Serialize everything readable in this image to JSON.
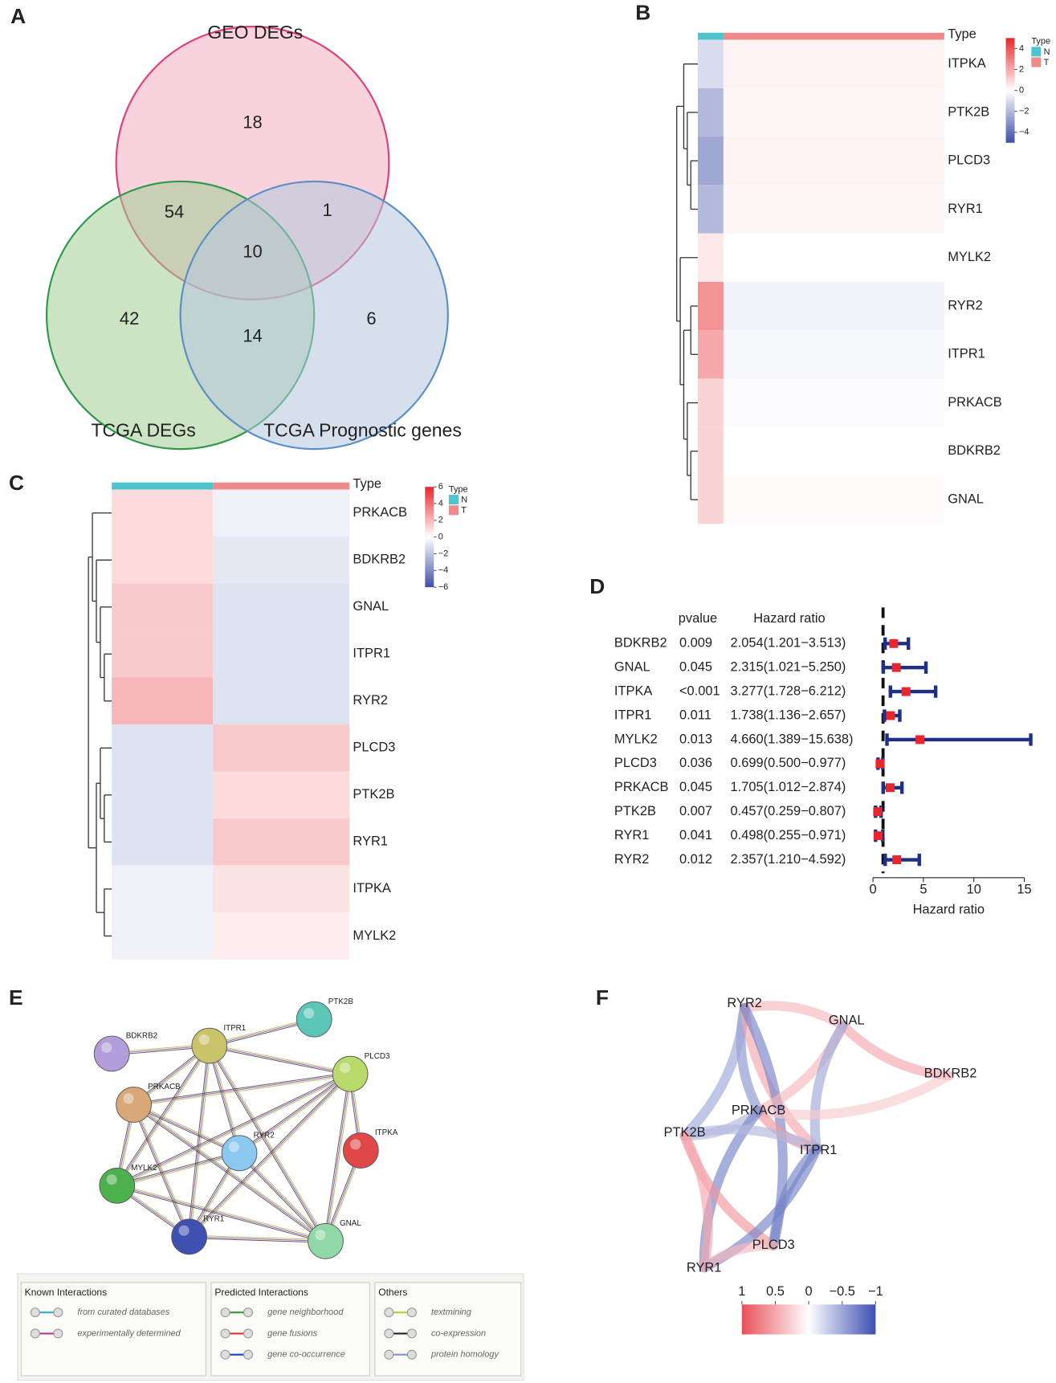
{
  "panels": [
    "A",
    "B",
    "C",
    "D",
    "E",
    "F"
  ],
  "chart_data": [
    {
      "type": "venn",
      "sets": [
        {
          "name": "GEO DEGs",
          "fill": "#f4aebf",
          "stroke": "#e0407a"
        },
        {
          "name": "TCGA DEGs",
          "fill": "#a3cc94",
          "stroke": "#2e9a4a"
        },
        {
          "name": "TCGA Prognostic genes",
          "fill": "#b4c6df",
          "stroke": "#5b8fc7"
        }
      ],
      "regions": [
        {
          "sets": [
            0
          ],
          "value": 18
        },
        {
          "sets": [
            0,
            1
          ],
          "value": 54
        },
        {
          "sets": [
            0,
            2
          ],
          "value": 1
        },
        {
          "sets": [
            0,
            1,
            2
          ],
          "value": 10
        },
        {
          "sets": [
            1
          ],
          "value": 42
        },
        {
          "sets": [
            1,
            2
          ],
          "value": 14
        },
        {
          "sets": [
            2
          ],
          "value": 6
        }
      ]
    },
    {
      "type": "heatmap",
      "legend_title": "Type",
      "groups": [
        {
          "name": "N",
          "color": "#4fc4cc"
        },
        {
          "name": "T",
          "color": "#f08a8a"
        }
      ],
      "rows": [
        "ITPKA",
        "PTK2B",
        "PLCD3",
        "RYR1",
        "MYLK2",
        "RYR2",
        "ITPR1",
        "PRKACB",
        "BDKRB2",
        "GNAL"
      ],
      "values": [
        [
          -1,
          0.3
        ],
        [
          -2,
          0.2
        ],
        [
          -2.5,
          0.3
        ],
        [
          -2,
          0.2
        ],
        [
          0.5,
          0
        ],
        [
          2.5,
          -0.3
        ],
        [
          2,
          -0.2
        ],
        [
          1,
          -0.1
        ],
        [
          1,
          0
        ],
        [
          1,
          0.1
        ]
      ],
      "colorbar": {
        "lim": [
          -5,
          5
        ],
        "ticks": [
          4,
          2,
          0,
          {
            "value": -2,
            "label": "−2"
          },
          {
            "value": -4,
            "label": "−4"
          }
        ],
        "colors": [
          "#3f4fa8",
          "#ffffff",
          "#e8262d"
        ]
      }
    },
    {
      "type": "heatmap",
      "legend_title": "Type",
      "groups": [
        {
          "name": "N",
          "color": "#4fc4cc"
        },
        {
          "name": "T",
          "color": "#f08a8a"
        }
      ],
      "rows": [
        "PRKACB",
        "BDKRB2",
        "GNAL",
        "ITPR1",
        "RYR2",
        "PLCD3",
        "PTK2B",
        "RYR1",
        "ITPKA",
        "MYLK2"
      ],
      "values": [
        [
          1,
          -0.5
        ],
        [
          1,
          -0.8
        ],
        [
          1.5,
          -1
        ],
        [
          1.5,
          -1
        ],
        [
          2,
          -1
        ],
        [
          -1,
          1.5
        ],
        [
          -1,
          1
        ],
        [
          -1,
          1.5
        ],
        [
          -0.5,
          0.8
        ],
        [
          -0.5,
          0.5
        ]
      ],
      "colorbar": {
        "lim": [
          -6,
          6
        ],
        "ticks": [
          6,
          4,
          2,
          0,
          {
            "value": -2,
            "label": "−2"
          },
          {
            "value": -4,
            "label": "−4"
          },
          {
            "value": -6,
            "label": "−6"
          }
        ],
        "colors": [
          "#3f4fa8",
          "#ffffff",
          "#e8262d"
        ]
      }
    },
    {
      "type": "forest",
      "columns": [
        "pvalue",
        "Hazard ratio"
      ],
      "categories": [
        "BDKRB2",
        "GNAL",
        "ITPKA",
        "ITPR1",
        "MYLK2",
        "PLCD3",
        "PRKACB",
        "PTK2B",
        "RYR1",
        "RYR2"
      ],
      "pvalues": [
        "0.009",
        "0.045",
        "<0.001",
        "0.011",
        "0.013",
        "0.036",
        "0.045",
        "0.007",
        "0.041",
        "0.012"
      ],
      "values": [
        2.054,
        2.315,
        3.277,
        1.738,
        4.66,
        0.699,
        1.705,
        0.457,
        0.498,
        2.357
      ],
      "lows": [
        1.201,
        1.021,
        1.728,
        1.136,
        1.389,
        0.5,
        1.012,
        0.259,
        0.255,
        1.21
      ],
      "highs": [
        3.513,
        5.25,
        6.212,
        2.657,
        15.638,
        0.977,
        2.874,
        0.807,
        0.971,
        4.592
      ],
      "value_labels": [
        "2.054(1.201−3.513)",
        "2.315(1.021−5.250)",
        "3.277(1.728−6.212)",
        "1.738(1.136−2.657)",
        "4.660(1.389−15.638)",
        "0.699(0.500−0.977)",
        "1.705(1.012−2.874)",
        "0.457(0.259−0.807)",
        "0.498(0.255−0.971)",
        "2.357(1.210−4.592)"
      ],
      "xlim": [
        0,
        15
      ],
      "xticks": [
        0,
        5,
        10,
        15
      ],
      "xlabel": "Hazard ratio",
      "reference": 1,
      "box_color": "#e8262d",
      "line_color": "#1f2f86"
    },
    {
      "type": "correlation_network",
      "nodes": [
        "RYR2",
        "GNAL",
        "BDKRB2",
        "PRKACB",
        "PTK2B",
        "ITPR1",
        "PLCD3",
        "RYR1"
      ],
      "edges": [
        {
          "source": 0,
          "target": 1,
          "value": 0.4
        },
        {
          "source": 0,
          "target": 3,
          "value": -0.6
        },
        {
          "source": 0,
          "target": 4,
          "value": -0.5
        },
        {
          "source": 0,
          "target": 5,
          "value": 0.5
        },
        {
          "source": 0,
          "target": 6,
          "value": -0.7
        },
        {
          "source": 1,
          "target": 2,
          "value": 0.5
        },
        {
          "source": 1,
          "target": 3,
          "value": 0.4
        },
        {
          "source": 1,
          "target": 5,
          "value": -0.5
        },
        {
          "source": 2,
          "target": 3,
          "value": 0.3
        },
        {
          "source": 3,
          "target": 5,
          "value": 0.6
        },
        {
          "source": 3,
          "target": 4,
          "value": -0.4
        },
        {
          "source": 3,
          "target": 7,
          "value": -0.7
        },
        {
          "source": 4,
          "target": 5,
          "value": -0.4
        },
        {
          "source": 4,
          "target": 6,
          "value": 0.6
        },
        {
          "source": 4,
          "target": 7,
          "value": 0.5
        },
        {
          "source": 5,
          "target": 6,
          "value": -0.7
        },
        {
          "source": 5,
          "target": 7,
          "value": -0.7
        },
        {
          "source": 6,
          "target": 7,
          "value": 0.4
        }
      ],
      "colorbar": {
        "lim": [
          1,
          -1
        ],
        "ticks": [
          1,
          0.5,
          0,
          {
            "value": -0.5,
            "label": "−0.5"
          },
          {
            "value": -1,
            "label": "−1"
          }
        ],
        "colors": [
          "#3d4fb0",
          "#ffffff",
          "#e8505a"
        ]
      }
    }
  ],
  "string_network": {
    "nodes": [
      {
        "label": "BDKRB2",
        "color": "#b39ddb"
      },
      {
        "label": "ITPR1",
        "color": "#c9c46a"
      },
      {
        "label": "PTK2B",
        "color": "#5cc6b8"
      },
      {
        "label": "PLCD3",
        "color": "#b9d96a"
      },
      {
        "label": "PRKACB",
        "color": "#d9a878"
      },
      {
        "label": "RYR2",
        "color": "#8ac8f0"
      },
      {
        "label": "ITPKA",
        "color": "#e04848"
      },
      {
        "label": "MYLK2",
        "color": "#4cb04c"
      },
      {
        "label": "RYR1",
        "color": "#4050b0"
      },
      {
        "label": "GNAL",
        "color": "#90d8a8"
      }
    ],
    "edges": [
      [
        0,
        1
      ],
      [
        1,
        2
      ],
      [
        1,
        3
      ],
      [
        1,
        4
      ],
      [
        1,
        5
      ],
      [
        1,
        7
      ],
      [
        1,
        8
      ],
      [
        1,
        9
      ],
      [
        3,
        4
      ],
      [
        3,
        5
      ],
      [
        3,
        6
      ],
      [
        3,
        8
      ],
      [
        3,
        9
      ],
      [
        4,
        5
      ],
      [
        4,
        7
      ],
      [
        4,
        8
      ],
      [
        4,
        9
      ],
      [
        5,
        7
      ],
      [
        5,
        8
      ],
      [
        5,
        9
      ],
      [
        7,
        8
      ],
      [
        7,
        9
      ],
      [
        8,
        9
      ],
      [
        6,
        9
      ],
      [
        3,
        7
      ]
    ],
    "legend": [
      {
        "title": "Known Interactions",
        "items": [
          {
            "label": "from curated databases",
            "color": "#3ab5d0"
          },
          {
            "label": "experimentally determined",
            "color": "#b03aa0"
          }
        ]
      },
      {
        "title": "Predicted Interactions",
        "items": [
          {
            "label": "gene neighborhood",
            "color": "#3aa040"
          },
          {
            "label": "gene fusions",
            "color": "#e03030"
          },
          {
            "label": "gene co-occurrence",
            "color": "#2040c0"
          }
        ]
      },
      {
        "title": "Others",
        "items": [
          {
            "label": "textmining",
            "color": "#c0d040"
          },
          {
            "label": "co-expression",
            "color": "#222222"
          },
          {
            "label": "protein homology",
            "color": "#8090d0"
          }
        ]
      }
    ]
  }
}
